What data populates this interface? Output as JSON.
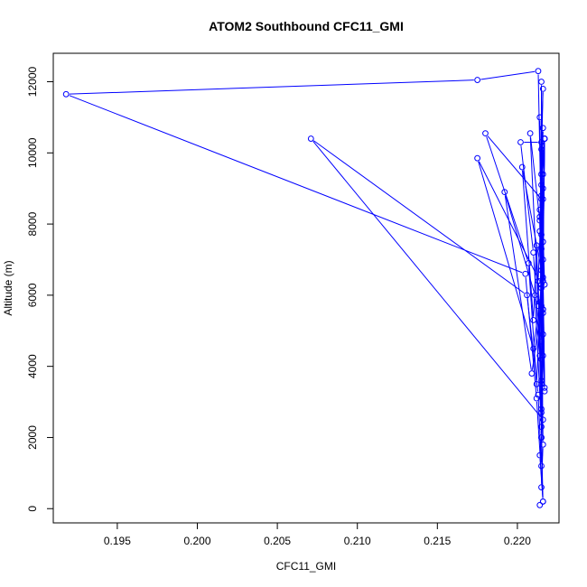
{
  "chart_data": {
    "type": "line",
    "title": "ATOM2 Southbound CFC11_GMI",
    "xlabel": "CFC11_GMI",
    "ylabel": "Altitude (m)",
    "xlim": [
      0.191,
      0.2226
    ],
    "ylim": [
      -400,
      12800
    ],
    "x_ticks": [
      0.195,
      0.2,
      0.205,
      0.21,
      0.215,
      0.22
    ],
    "x_tick_labels": [
      "0.195",
      "0.200",
      "0.205",
      "0.210",
      "0.215",
      "0.220"
    ],
    "y_ticks": [
      0,
      2000,
      4000,
      6000,
      8000,
      10000,
      12000
    ],
    "y_tick_labels": [
      "0",
      "2000",
      "4000",
      "6000",
      "8000",
      "10000",
      "12000"
    ],
    "grid": false,
    "legend": "none",
    "series_color": "#0000ff",
    "series": [
      {
        "x": [
          0.2214,
          0.2216,
          0.2215,
          0.2216,
          0.2213,
          0.2175,
          0.1918,
          0.2205,
          0.2212,
          0.2216,
          0.2214,
          0.2216,
          0.2071,
          0.2206,
          0.2213,
          0.2215,
          0.2216,
          0.2215,
          0.2214,
          0.2216,
          0.2215,
          0.2216,
          0.2215,
          0.2213,
          0.2215,
          0.218,
          0.2207,
          0.2212,
          0.2216,
          0.2215,
          0.2216,
          0.2214,
          0.2216,
          0.2215,
          0.2175,
          0.221,
          0.2215,
          0.2217,
          0.2214,
          0.2216,
          0.2215,
          0.2202,
          0.221,
          0.2214,
          0.2216,
          0.2215,
          0.2209,
          0.2192,
          0.2211,
          0.2215,
          0.2216,
          0.2215,
          0.2203,
          0.221,
          0.2212,
          0.2215,
          0.2217,
          0.2215,
          0.2214,
          0.2216,
          0.2215,
          0.2217,
          0.2215,
          0.2208,
          0.2213,
          0.2215,
          0.2217,
          0.2214,
          0.2216,
          0.2215,
          0.2215,
          0.2216,
          0.2217,
          0.2215,
          0.2216,
          0.2215,
          0.2217,
          0.2215,
          0.2214,
          0.2216,
          0.2215
        ],
        "y": [
          100,
          200,
          2000,
          5500,
          12300,
          12050,
          11650,
          6600,
          3100,
          200,
          1500,
          2500,
          10400,
          6000,
          3200,
          1200,
          4300,
          2800,
          5800,
          7000,
          9100,
          5600,
          2000,
          6400,
          8700,
          10550,
          6900,
          3500,
          7500,
          4200,
          9400,
          8400,
          10700,
          6300,
          9850,
          4500,
          6200,
          3300,
          7800,
          11800,
          10300,
          10300,
          7200,
          4300,
          8700,
          5700,
          3800,
          8900,
          6000,
          2300,
          9000,
          6700,
          9600,
          5300,
          7400,
          3600,
          10400,
          4700,
          8200,
          6400,
          9400,
          6300,
          7700,
          10550,
          5700,
          3500,
          10400,
          8100,
          4900,
          12000,
          7300,
          6500,
          3400,
          10100,
          5600,
          2700,
          10400,
          8800,
          11000,
          1800,
          600
        ]
      }
    ]
  }
}
